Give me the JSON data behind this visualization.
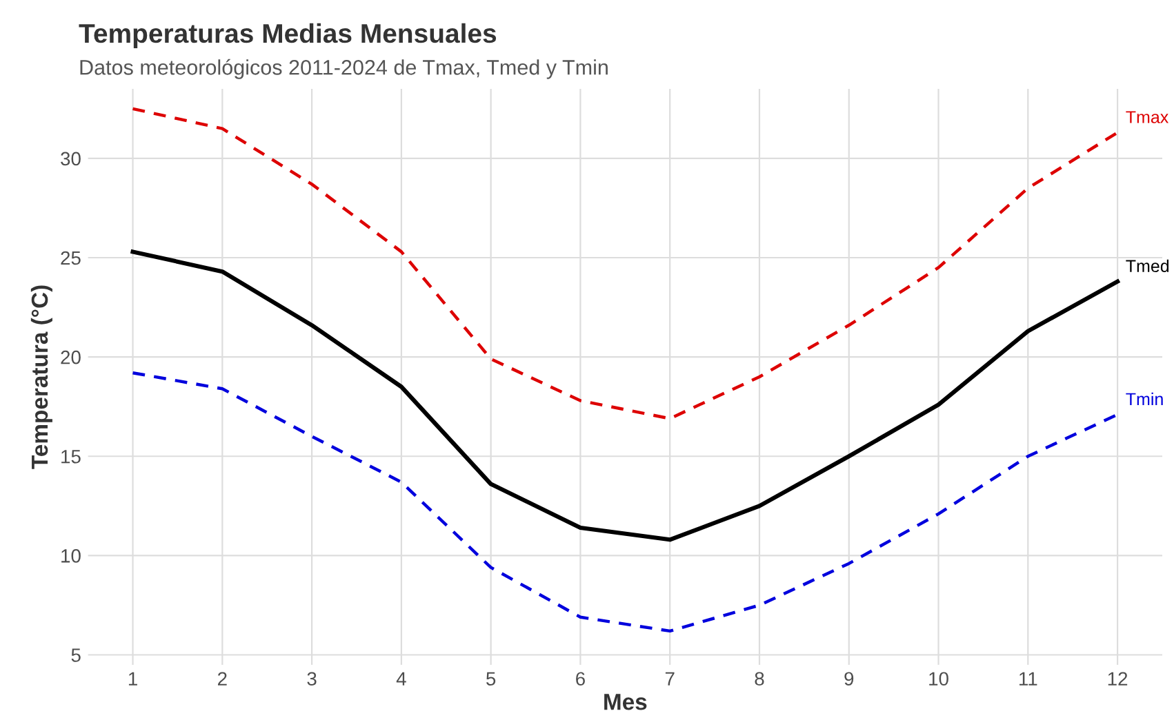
{
  "chart_data": {
    "type": "line",
    "title": "Temperaturas Medias Mensuales",
    "subtitle": "Datos meteorológicos 2011-2024 de Tmax, Tmed y Tmin",
    "xlabel": "Mes",
    "ylabel": "Temperatura (°C)",
    "x": [
      1,
      2,
      3,
      4,
      5,
      6,
      7,
      8,
      9,
      10,
      11,
      12
    ],
    "series": [
      {
        "name": "Tmax",
        "color": "#dd0000",
        "line_style": "dashed",
        "values": [
          32.5,
          31.5,
          28.7,
          25.3,
          19.9,
          17.8,
          16.9,
          19.0,
          21.6,
          24.5,
          28.5,
          31.3
        ]
      },
      {
        "name": "Tmed",
        "color": "#000000",
        "line_style": "solid",
        "values": [
          25.3,
          24.3,
          21.6,
          18.5,
          13.6,
          11.4,
          10.8,
          12.5,
          15.0,
          17.6,
          21.3,
          23.8
        ]
      },
      {
        "name": "Tmin",
        "color": "#0000dd",
        "line_style": "dashed",
        "values": [
          19.2,
          18.4,
          16.0,
          13.7,
          9.4,
          6.9,
          6.2,
          7.5,
          9.6,
          12.1,
          15.0,
          17.1
        ]
      }
    ],
    "xlim": [
      0.5,
      12.5
    ],
    "xticks": [
      1,
      2,
      3,
      4,
      5,
      6,
      7,
      8,
      9,
      10,
      11,
      12
    ],
    "ylim": [
      4.5,
      33.5
    ],
    "yticks": [
      5,
      10,
      15,
      20,
      25,
      30
    ],
    "grid": true,
    "legend": false,
    "marker": "none"
  }
}
